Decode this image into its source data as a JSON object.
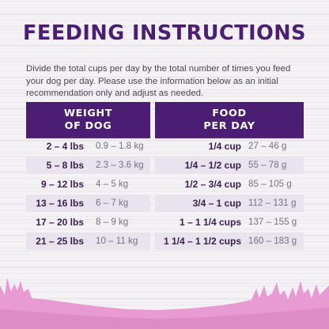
{
  "title": "FEEDING INSTRUCTIONS",
  "intro": "Divide the total cups per day by the total number of times you feed your dog per day. Please use the information below as an initial recommendation only and adjust as needed.",
  "table": {
    "headers": [
      "WEIGHT\nOF DOG",
      "FOOD\nPER DAY"
    ],
    "rows": [
      {
        "lbs": "2 – 4 lbs",
        "kg": "0.9 – 1.8 kg",
        "cups": "1/4 cup",
        "grams": "27 – 46 g"
      },
      {
        "lbs": "5 – 8 lbs",
        "kg": "2.3 – 3.6 kg",
        "cups": "1/4 – 1/2 cup",
        "grams": "55 – 78 g"
      },
      {
        "lbs": "9 – 12 lbs",
        "kg": "4 – 5 kg",
        "cups": "1/2 – 3/4 cup",
        "grams": "85 – 105 g"
      },
      {
        "lbs": "13 – 16 lbs",
        "kg": "6 – 7 kg",
        "cups": "3/4 – 1 cup",
        "grams": "112 – 131 g"
      },
      {
        "lbs": "17 – 20 lbs",
        "kg": "8 – 9 kg",
        "cups": "1 – 1 1/4 cups",
        "grams": "137 – 155 g"
      },
      {
        "lbs": "21 – 25 lbs",
        "kg": "10 – 11 kg",
        "cups": "1 1/4 – 1 1/2 cups",
        "grams": "160 – 183 g"
      }
    ]
  },
  "colors": {
    "brand_purple": "#4b1e74",
    "row_shade": "#e8e3ec",
    "grass_pink": "#e79bd2"
  }
}
